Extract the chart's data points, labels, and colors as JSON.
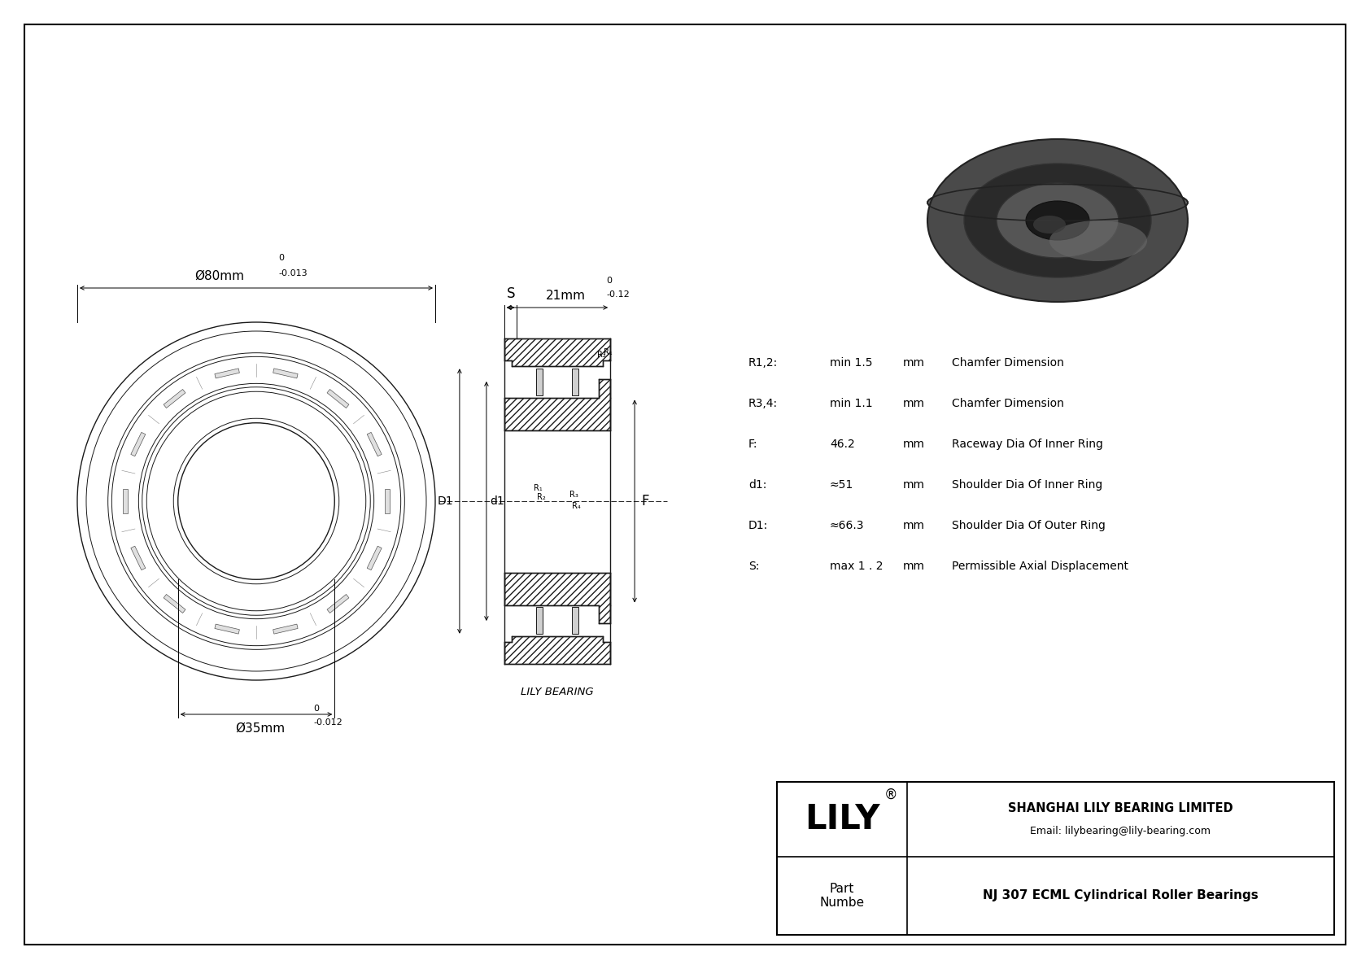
{
  "bg_color": "#ffffff",
  "border_color": "#000000",
  "line_color": "#000000",
  "company_name": "SHANGHAI LILY BEARING LIMITED",
  "company_email": "Email: lilybearing@lily-bearing.com",
  "part_label": "Part\nNumbe",
  "part_number": "NJ 307 ECML Cylindrical Roller Bearings",
  "lily_logo": "LILY",
  "registered_mark": "®",
  "watermark": "LILY BEARING",
  "dim_od_label": "Ø80mm",
  "dim_od_tol_top": "0",
  "dim_od_tol_bot": "-0.013",
  "dim_id_label": "Ø35mm",
  "dim_id_tol_top": "0",
  "dim_id_tol_bot": "-0.012",
  "dim_w_label": "21mm",
  "dim_w_tol_top": "0",
  "dim_w_tol_bot": "-0.12",
  "spec_rows": [
    {
      "param": "R1,2:",
      "value": "min 1.5",
      "unit": "mm",
      "desc": "Chamfer Dimension"
    },
    {
      "param": "R3,4:",
      "value": "min 1.1",
      "unit": "mm",
      "desc": "Chamfer Dimension"
    },
    {
      "param": "F:",
      "value": "46.2",
      "unit": "mm",
      "desc": "Raceway Dia Of Inner Ring"
    },
    {
      "param": "d1:",
      "value": "≈51",
      "unit": "mm",
      "desc": "Shoulder Dia Of Inner Ring"
    },
    {
      "param": "D1:",
      "value": "≈66.3",
      "unit": "mm",
      "desc": "Shoulder Dia Of Outer Ring"
    },
    {
      "param": "S:",
      "value": "max 1 . 2",
      "unit": "mm",
      "desc": "Permissible Axial Displacement"
    }
  ]
}
